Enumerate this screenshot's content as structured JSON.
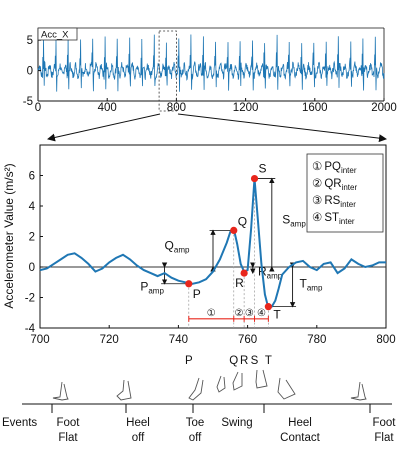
{
  "chart_data": [
    {
      "type": "line",
      "legend_label": "Acc_X",
      "xlim": [
        0,
        2000
      ],
      "ylim": [
        -5,
        7
      ],
      "xticks": [
        "0",
        "400",
        "800",
        "1200",
        "1600",
        "2000"
      ],
      "yticks": [
        "5",
        "0",
        "-5"
      ],
      "zoom_window": [
        700,
        800
      ],
      "series_style": {
        "color": "#1f77b4"
      },
      "pattern": {
        "period_samples": 71,
        "baseline_range": [
          -1.2,
          1.2
        ],
        "peak_max": 6,
        "trough_min": -3.5
      }
    },
    {
      "type": "line",
      "xlabel": "",
      "ylabel": "Accelerometer Value (m/s²)",
      "xlim": [
        700,
        800
      ],
      "ylim": [
        -4,
        8
      ],
      "xticks": [
        "700",
        "720",
        "740",
        "760",
        "780",
        "800"
      ],
      "yticks": [
        "6",
        "4",
        "2",
        "0",
        "-2",
        "-4"
      ],
      "series": [
        {
          "x": [
            700,
            702,
            704,
            706,
            708,
            710,
            712,
            714,
            716,
            718,
            720,
            722,
            724,
            726,
            728,
            730,
            732,
            734,
            736,
            738,
            740,
            742,
            744,
            746,
            748,
            750,
            752,
            754,
            755,
            756,
            757,
            758,
            759,
            760,
            761,
            762,
            763,
            764,
            765,
            766,
            767,
            768,
            769,
            770,
            772,
            774,
            776,
            778,
            780,
            782,
            784,
            786,
            788,
            790,
            792,
            794,
            796,
            798,
            800
          ],
          "y": [
            -0.2,
            -0.1,
            0.2,
            0.5,
            0.8,
            0.9,
            0.6,
            0.2,
            -0.3,
            -0.1,
            0.3,
            0.6,
            0.8,
            0.5,
            0.1,
            -0.2,
            -0.4,
            -0.6,
            -0.4,
            -0.7,
            -0.9,
            -1.0,
            -1.1,
            -1.0,
            -0.8,
            -0.3,
            0.5,
            1.6,
            2.3,
            2.5,
            1.5,
            0.2,
            -0.3,
            -0.2,
            2.5,
            5.8,
            3.0,
            0.2,
            -1.8,
            -2.7,
            -2.6,
            -2.2,
            -1.4,
            -0.5,
            0.0,
            0.3,
            0.4,
            0.0,
            -0.2,
            0.2,
            0.3,
            -0.4,
            -0.1,
            0.5,
            0.2,
            0.0,
            0.1,
            0.3,
            0.3
          ]
        }
      ],
      "points": [
        {
          "label": "P",
          "x": 743,
          "y": -1.1
        },
        {
          "label": "Q",
          "x": 756,
          "y": 2.4
        },
        {
          "label": "R",
          "x": 759,
          "y": -0.4
        },
        {
          "label": "S",
          "x": 762,
          "y": 5.8
        },
        {
          "label": "T",
          "x": 766,
          "y": -2.6
        }
      ],
      "amplitude_labels": [
        "P",
        "amp",
        "Q",
        "amp",
        "R",
        "amp",
        "S",
        "amp",
        "T",
        "amp"
      ],
      "interval_markers": [
        "①",
        "②",
        "③",
        "④"
      ],
      "legend": [
        {
          "marker": "①",
          "text": "PQ",
          "sub": "inter"
        },
        {
          "marker": "②",
          "text": "QR",
          "sub": "inter"
        },
        {
          "marker": "③",
          "text": "RS",
          "sub": "inter"
        },
        {
          "marker": "④",
          "text": "ST",
          "sub": "inter"
        }
      ],
      "legend_position": "top-right",
      "grid": false,
      "point_color": "#e8261c",
      "line_color": "#1f77b4"
    }
  ],
  "gait": {
    "event_ticks_x": [
      743,
      756,
      759,
      762,
      766
    ],
    "event_tick_labels": [
      "P",
      "Q",
      "R",
      "S",
      "T"
    ],
    "events_label": "Events",
    "phases": [
      {
        "line1": "Foot",
        "line2": "Flat"
      },
      {
        "line1": "Heel",
        "line2": "off"
      },
      {
        "line1": "Toe",
        "line2": "off"
      },
      {
        "line1": "Swing",
        "line2": ""
      },
      {
        "line1": "Heel",
        "line2": "Contact"
      },
      {
        "line1": "Foot",
        "line2": "Flat"
      }
    ]
  }
}
